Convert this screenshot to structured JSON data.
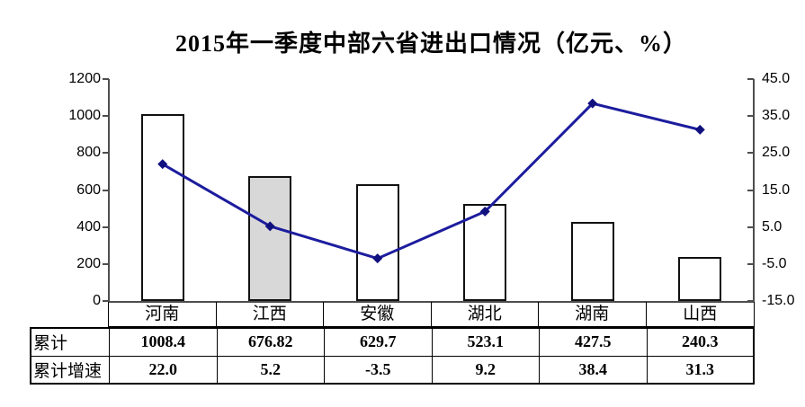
{
  "title": "2015年一季度中部六省进出口情况（亿元、%）",
  "chart_data": {
    "type": "combo",
    "categories": [
      "河南",
      "江西",
      "安徽",
      "湖北",
      "湖南",
      "山西"
    ],
    "series": [
      {
        "name": "累计",
        "type": "bar",
        "axis": "left",
        "values": [
          1008.4,
          676.82,
          629.7,
          523.1,
          427.5,
          240.3
        ]
      },
      {
        "name": "累计增速",
        "type": "line",
        "axis": "right",
        "values": [
          22.0,
          5.2,
          -3.5,
          9.2,
          38.4,
          31.3
        ]
      }
    ],
    "left_axis": {
      "min": 0,
      "max": 1200,
      "step": 200,
      "ticks": [
        "0",
        "200",
        "400",
        "600",
        "800",
        "1000",
        "1200"
      ]
    },
    "right_axis": {
      "min": -15,
      "max": 45,
      "step": 10,
      "ticks": [
        "-15.0",
        "-5.0",
        "5.0",
        "15.0",
        "25.0",
        "35.0",
        "45.0"
      ]
    },
    "highlighted_category_index": 1,
    "legend": "none",
    "grid": "off",
    "colors": {
      "bar_fill": "#ffffff",
      "bar_highlight_fill": "#d8d8d8",
      "bar_border": "#111111",
      "line": "#1c1c9e",
      "marker": "#10107e",
      "axis": "#4d4d4d"
    }
  },
  "table": {
    "rows": [
      {
        "header": "累计",
        "values": [
          "1008.4",
          "676.82",
          "629.7",
          "523.1",
          "427.5",
          "240.3"
        ]
      },
      {
        "header": "累计增速",
        "values": [
          "22.0",
          "5.2",
          "-3.5",
          "9.2",
          "38.4",
          "31.3"
        ]
      }
    ]
  }
}
